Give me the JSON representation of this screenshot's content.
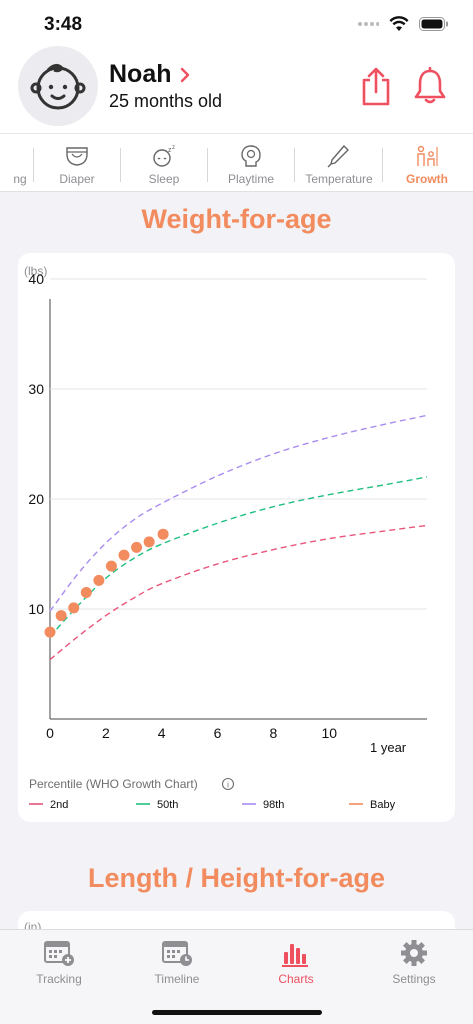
{
  "status_bar": {
    "time": "3:48"
  },
  "header": {
    "child_name": "Noah",
    "child_age": "25 months old"
  },
  "tabs": [
    {
      "label": "ng",
      "icon": "feeding-icon",
      "active": false
    },
    {
      "label": "Diaper",
      "icon": "diaper-icon",
      "active": false
    },
    {
      "label": "Sleep",
      "icon": "sleep-icon",
      "active": false
    },
    {
      "label": "Playtime",
      "icon": "playtime-icon",
      "active": false
    },
    {
      "label": "Temperature",
      "icon": "thermometer-icon",
      "active": false
    },
    {
      "label": "Growth",
      "icon": "growth-icon",
      "active": true
    }
  ],
  "weight_section": {
    "title": "Weight-for-age",
    "unit_label": "(lbs)",
    "x_suffix": "1 year",
    "legend_title": "Percentile (WHO Growth Chart)",
    "legend": [
      {
        "label": "2nd",
        "color": "#e8557a"
      },
      {
        "label": "50th",
        "color": "#1fc07f"
      },
      {
        "label": "98th",
        "color": "#a98cf0"
      },
      {
        "label": "Baby",
        "color": "#f28b5e"
      }
    ]
  },
  "length_section": {
    "title": "Length / Height-for-age",
    "unit_label": "(in)"
  },
  "chart_data": {
    "type": "line",
    "title": "Weight-for-age",
    "ylabel": "(lbs)",
    "xlabel": "1 year",
    "xlim": [
      0,
      13.5
    ],
    "ylim": [
      0,
      40
    ],
    "x_ticks": [
      0,
      2,
      4,
      6,
      8,
      10
    ],
    "y_ticks": [
      10,
      20,
      30,
      40
    ],
    "grid": true,
    "legend_position": "bottom",
    "series": [
      {
        "name": "2nd",
        "style": "dashed",
        "color": "#e8557a",
        "x": [
          0,
          1,
          2,
          3,
          4,
          6,
          8,
          10,
          12,
          13.5
        ],
        "y": [
          5.4,
          7.5,
          9.4,
          11.0,
          12.3,
          14.1,
          15.4,
          16.4,
          17.1,
          17.6
        ]
      },
      {
        "name": "50th",
        "style": "dashed",
        "color": "#1fc07f",
        "x": [
          0,
          1,
          2,
          3,
          4,
          6,
          8,
          10,
          12,
          13.5
        ],
        "y": [
          7.5,
          10.3,
          12.8,
          14.6,
          15.9,
          17.8,
          19.3,
          20.4,
          21.3,
          22.0
        ]
      },
      {
        "name": "98th",
        "style": "dashed",
        "color": "#a98cf0",
        "x": [
          0,
          1,
          2,
          3,
          4,
          6,
          8,
          10,
          12,
          13.5
        ],
        "y": [
          9.8,
          13.2,
          16.0,
          18.1,
          19.6,
          22.1,
          24.1,
          25.6,
          26.8,
          27.6
        ]
      },
      {
        "name": "Baby",
        "style": "points",
        "color": "#f28b5e",
        "x": [
          0,
          0.4,
          0.85,
          1.3,
          1.75,
          2.2,
          2.65,
          3.1,
          3.55,
          4.05
        ],
        "y": [
          7.9,
          9.4,
          10.1,
          11.5,
          12.6,
          13.9,
          14.9,
          15.6,
          16.1,
          16.8
        ]
      }
    ]
  },
  "tabbar": [
    {
      "label": "Tracking",
      "icon": "tracking-calendar-icon",
      "active": false
    },
    {
      "label": "Timeline",
      "icon": "timeline-calendar-icon",
      "active": false
    },
    {
      "label": "Charts",
      "icon": "bar-chart-icon",
      "active": true
    },
    {
      "label": "Settings",
      "icon": "gear-icon",
      "active": false
    }
  ]
}
